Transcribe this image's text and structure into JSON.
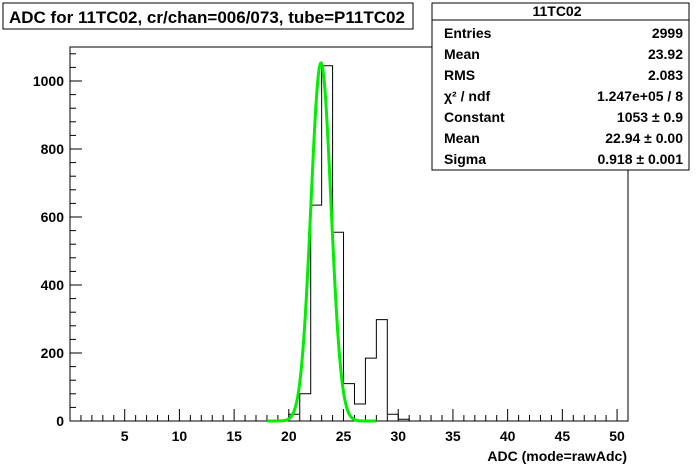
{
  "chart_data": {
    "type": "histogram",
    "title": "ADC for 11TC02,  cr/chan=006/073,  tube=P11TC02",
    "xlabel": "ADC (mode=rawAdc)",
    "ylabel": "",
    "xlim": [
      0,
      51
    ],
    "ylim": [
      0,
      1100
    ],
    "x_ticks": [
      5,
      10,
      15,
      20,
      25,
      30,
      35,
      40,
      45,
      50
    ],
    "y_ticks": [
      0,
      200,
      400,
      600,
      800,
      1000
    ],
    "grid": false,
    "bins": [
      {
        "lo": 20,
        "hi": 21,
        "count": 20
      },
      {
        "lo": 21,
        "hi": 22,
        "count": 80
      },
      {
        "lo": 22,
        "hi": 23,
        "count": 635
      },
      {
        "lo": 23,
        "hi": 24,
        "count": 1045
      },
      {
        "lo": 24,
        "hi": 25,
        "count": 555
      },
      {
        "lo": 25,
        "hi": 26,
        "count": 110
      },
      {
        "lo": 26,
        "hi": 27,
        "count": 50
      },
      {
        "lo": 27,
        "hi": 28,
        "count": 185
      },
      {
        "lo": 28,
        "hi": 29,
        "count": 298
      },
      {
        "lo": 29,
        "hi": 30,
        "count": 20
      },
      {
        "lo": 30,
        "hi": 31,
        "count": 5
      }
    ],
    "fit": {
      "type": "gaussian",
      "constant": 1053,
      "mean": 22.94,
      "sigma": 0.918,
      "range": [
        18,
        28
      ],
      "color": "#00ee00"
    },
    "stats_box": {
      "title": "11TC02",
      "rows": [
        {
          "label": "Entries",
          "value": "2999"
        },
        {
          "label": "Mean",
          "value": "23.92"
        },
        {
          "label": "RMS",
          "value": "2.083"
        },
        {
          "label": "χ² / ndf",
          "value": "1.247e+05 / 8"
        },
        {
          "label": "Constant",
          "value": "1053 ± 0.9"
        },
        {
          "label": "Mean",
          "value": "22.94 ± 0.00"
        },
        {
          "label": "Sigma",
          "value": "0.918 ± 0.001"
        }
      ]
    }
  }
}
